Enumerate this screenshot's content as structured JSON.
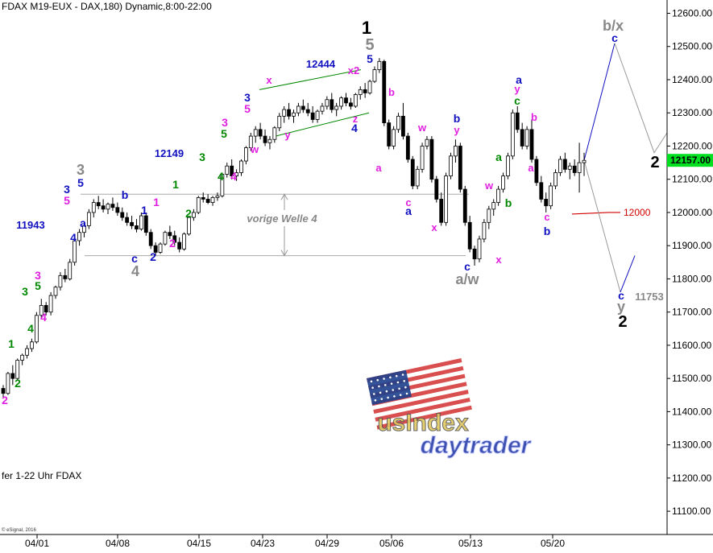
{
  "header": {
    "title": "FDAX M19-EUX - DAX,180) Dynamic,8:00-22:00",
    "bottom_note": "fer 1-22 Uhr FDAX",
    "copyright": "© eSignal, 2016"
  },
  "watermark": {
    "text_line1": "usIndex",
    "text_line2": "daytrader"
  },
  "chart_data": {
    "type": "candlestick",
    "title": "FDAX M19-EUX - DAX,180) Dynamic,8:00-22:00",
    "x_tick_labels": [
      "04/01",
      "04/08",
      "04/15",
      "04/23",
      "04/29",
      "05/06",
      "05/13",
      "05/20"
    ],
    "y_ticks": [
      11100,
      11200,
      11300,
      11400,
      11500,
      11600,
      11700,
      11800,
      11900,
      12000,
      12100,
      12200,
      12300,
      12400,
      12500,
      12600
    ],
    "y_tick_labels": [
      "11100.00",
      "11200.00",
      "11300.00",
      "11400.00",
      "11500.00",
      "11600.00",
      "11700.00",
      "11800.00",
      "11900.00",
      "12000.00",
      "12100.00",
      "12200.00",
      "12300.00",
      "12400.00",
      "12500.00",
      "12600.00"
    ],
    "ylim": [
      11030,
      12640
    ],
    "last_price": 12157,
    "last_price_label": "12157.00",
    "grid": false,
    "candles": [
      [
        11470,
        11480,
        11440,
        11455
      ],
      [
        11455,
        11520,
        11450,
        11515
      ],
      [
        11515,
        11540,
        11480,
        11500
      ],
      [
        11500,
        11560,
        11495,
        11555
      ],
      [
        11555,
        11575,
        11540,
        11570
      ],
      [
        11570,
        11600,
        11560,
        11590
      ],
      [
        11590,
        11620,
        11580,
        11610
      ],
      [
        11610,
        11700,
        11605,
        11690
      ],
      [
        11690,
        11740,
        11680,
        11720
      ],
      [
        11720,
        11730,
        11690,
        11700
      ],
      [
        11700,
        11760,
        11690,
        11750
      ],
      [
        11750,
        11780,
        11740,
        11775
      ],
      [
        11775,
        11820,
        11765,
        11810
      ],
      [
        11810,
        11830,
        11790,
        11800
      ],
      [
        11800,
        11860,
        11795,
        11850
      ],
      [
        11850,
        11920,
        11840,
        11915
      ],
      [
        11915,
        11950,
        11900,
        11940
      ],
      [
        11940,
        11970,
        11925,
        11960
      ],
      [
        11960,
        12010,
        11950,
        12000
      ],
      [
        12000,
        12040,
        11985,
        12030
      ],
      [
        12030,
        12050,
        12010,
        12020
      ],
      [
        12020,
        12040,
        12000,
        12010
      ],
      [
        12010,
        12030,
        11995,
        12025
      ],
      [
        12025,
        12045,
        12005,
        12015
      ],
      [
        12015,
        12030,
        11990,
        12000
      ],
      [
        12000,
        12015,
        11975,
        11985
      ],
      [
        11985,
        12000,
        11960,
        11970
      ],
      [
        11970,
        11990,
        11950,
        11960
      ],
      [
        11960,
        11980,
        11940,
        11950
      ],
      [
        11950,
        12000,
        11945,
        11990
      ],
      [
        11990,
        12000,
        11930,
        11940
      ],
      [
        11940,
        11950,
        11890,
        11900
      ],
      [
        11900,
        11910,
        11870,
        11880
      ],
      [
        11880,
        11910,
        11875,
        11905
      ],
      [
        11905,
        11945,
        11900,
        11940
      ],
      [
        11940,
        11960,
        11920,
        11930
      ],
      [
        11930,
        11945,
        11900,
        11910
      ],
      [
        11910,
        11925,
        11880,
        11890
      ],
      [
        11890,
        11940,
        11885,
        11935
      ],
      [
        11935,
        11990,
        11930,
        11985
      ],
      [
        11985,
        12010,
        11975,
        12000
      ],
      [
        12000,
        12050,
        11995,
        12045
      ],
      [
        12045,
        12060,
        12030,
        12040
      ],
      [
        12040,
        12055,
        12025,
        12030
      ],
      [
        12030,
        12050,
        12020,
        12045
      ],
      [
        12045,
        12060,
        12035,
        12050
      ],
      [
        12050,
        12120,
        12045,
        12115
      ],
      [
        12115,
        12150,
        12105,
        12140
      ],
      [
        12140,
        12160,
        12100,
        12110
      ],
      [
        12110,
        12130,
        12095,
        12120
      ],
      [
        12120,
        12160,
        12110,
        12155
      ],
      [
        12155,
        12200,
        12145,
        12195
      ],
      [
        12195,
        12240,
        12185,
        12230
      ],
      [
        12230,
        12260,
        12210,
        12250
      ],
      [
        12250,
        12270,
        12220,
        12230
      ],
      [
        12230,
        12250,
        12200,
        12210
      ],
      [
        12210,
        12230,
        12190,
        12220
      ],
      [
        12220,
        12260,
        12210,
        12255
      ],
      [
        12255,
        12300,
        12245,
        12290
      ],
      [
        12290,
        12320,
        12270,
        12310
      ],
      [
        12310,
        12330,
        12280,
        12290
      ],
      [
        12290,
        12310,
        12270,
        12300
      ],
      [
        12300,
        12330,
        12290,
        12320
      ],
      [
        12320,
        12340,
        12300,
        12310
      ],
      [
        12310,
        12330,
        12290,
        12300
      ],
      [
        12300,
        12320,
        12270,
        12280
      ],
      [
        12280,
        12310,
        12270,
        12305
      ],
      [
        12305,
        12330,
        12295,
        12320
      ],
      [
        12320,
        12350,
        12310,
        12340
      ],
      [
        12340,
        12360,
        12300,
        12310
      ],
      [
        12310,
        12330,
        12290,
        12320
      ],
      [
        12320,
        12350,
        12310,
        12345
      ],
      [
        12345,
        12360,
        12320,
        12330
      ],
      [
        12330,
        12345,
        12310,
        12320
      ],
      [
        12320,
        12360,
        12315,
        12355
      ],
      [
        12355,
        12380,
        12340,
        12370
      ],
      [
        12370,
        12390,
        12345,
        12360
      ],
      [
        12360,
        12400,
        12355,
        12395
      ],
      [
        12395,
        12440,
        12390,
        12430
      ],
      [
        12430,
        12465,
        12420,
        12455
      ],
      [
        12455,
        12460,
        12260,
        12270
      ],
      [
        12270,
        12280,
        12190,
        12200
      ],
      [
        12200,
        12260,
        12190,
        12250
      ],
      [
        12250,
        12300,
        12240,
        12290
      ],
      [
        12290,
        12330,
        12220,
        12230
      ],
      [
        12230,
        12240,
        12150,
        12160
      ],
      [
        12160,
        12170,
        12070,
        12080
      ],
      [
        12080,
        12140,
        12070,
        12130
      ],
      [
        12130,
        12210,
        12120,
        12200
      ],
      [
        12200,
        12230,
        12190,
        12220
      ],
      [
        12220,
        12230,
        12090,
        12100
      ],
      [
        12100,
        12110,
        12030,
        12040
      ],
      [
        12040,
        12060,
        11960,
        11970
      ],
      [
        11970,
        12120,
        11960,
        12110
      ],
      [
        12110,
        12180,
        12100,
        12170
      ],
      [
        12170,
        12220,
        12150,
        12200
      ],
      [
        12200,
        12210,
        12060,
        12070
      ],
      [
        12070,
        12080,
        11960,
        11970
      ],
      [
        11970,
        11990,
        11880,
        11890
      ],
      [
        11890,
        11900,
        11840,
        11860
      ],
      [
        11860,
        11930,
        11850,
        11920
      ],
      [
        11920,
        11980,
        11910,
        11970
      ],
      [
        11970,
        12020,
        11950,
        12010
      ],
      [
        12010,
        12040,
        11990,
        12030
      ],
      [
        12030,
        12080,
        12020,
        12070
      ],
      [
        12070,
        12120,
        12060,
        12110
      ],
      [
        12110,
        12180,
        12100,
        12170
      ],
      [
        12170,
        12310,
        12160,
        12300
      ],
      [
        12300,
        12320,
        12240,
        12250
      ],
      [
        12250,
        12270,
        12190,
        12200
      ],
      [
        12200,
        12260,
        12190,
        12250
      ],
      [
        12250,
        12280,
        12150,
        12160
      ],
      [
        12160,
        12170,
        12080,
        12090
      ],
      [
        12090,
        12110,
        12030,
        12040
      ],
      [
        12040,
        12060,
        12000,
        12020
      ],
      [
        12020,
        12090,
        12010,
        12080
      ],
      [
        12080,
        12130,
        12070,
        12120
      ],
      [
        12120,
        12170,
        12110,
        12160
      ],
      [
        12160,
        12180,
        12120,
        12130
      ],
      [
        12130,
        12150,
        12100,
        12140
      ],
      [
        12140,
        12160,
        12110,
        12120
      ],
      [
        12120,
        12210,
        12060,
        12150
      ],
      [
        12150,
        12180,
        12110,
        12157
      ]
    ],
    "forecast_path": {
      "color": "#1010c0",
      "points": [
        [
          0,
          12157
        ],
        [
          1,
          12510
        ],
        [
          2,
          12180
        ],
        [
          3,
          12240
        ]
      ]
    },
    "forecast_down_path": {
      "color": "#999999",
      "points": [
        [
          0,
          12157
        ],
        [
          1,
          11760
        ],
        [
          2,
          11870
        ]
      ]
    },
    "horizontal_lines": [
      {
        "value": 12055,
        "color": "#aaaaaa"
      },
      {
        "value": 11870,
        "color": "#aaaaaa"
      }
    ],
    "target_line": {
      "value": 12000,
      "color": "#d00000",
      "label": "12000"
    },
    "annotations": [
      {
        "text": "1",
        "color": "#000000"
      },
      {
        "text": "5",
        "color": "#888888"
      },
      {
        "text": "5",
        "color": "#1010c0"
      },
      {
        "text": "12444",
        "color": "#1010c0"
      },
      {
        "text": "x",
        "color": "#e020e0"
      },
      {
        "text": "x2",
        "color": "#e020e0"
      },
      {
        "text": "z",
        "color": "#e020e0"
      },
      {
        "text": "4",
        "color": "#1010c0"
      },
      {
        "text": "y",
        "color": "#e020e0"
      },
      {
        "text": "w",
        "color": "#e020e0"
      },
      {
        "text": "12149",
        "color": "#1010c0"
      },
      {
        "text": "11943",
        "color": "#1010c0"
      },
      {
        "text": "b/x",
        "color": "#888888"
      },
      {
        "text": "c",
        "color": "#1010c0"
      },
      {
        "text": "2",
        "color": "#000000"
      },
      {
        "text": "a/w",
        "color": "#888888"
      },
      {
        "text": "11753",
        "color": "#888888"
      },
      {
        "text": "y",
        "color": "#888888"
      },
      {
        "text": "vorige Welle 4",
        "color": "#888888"
      }
    ]
  }
}
